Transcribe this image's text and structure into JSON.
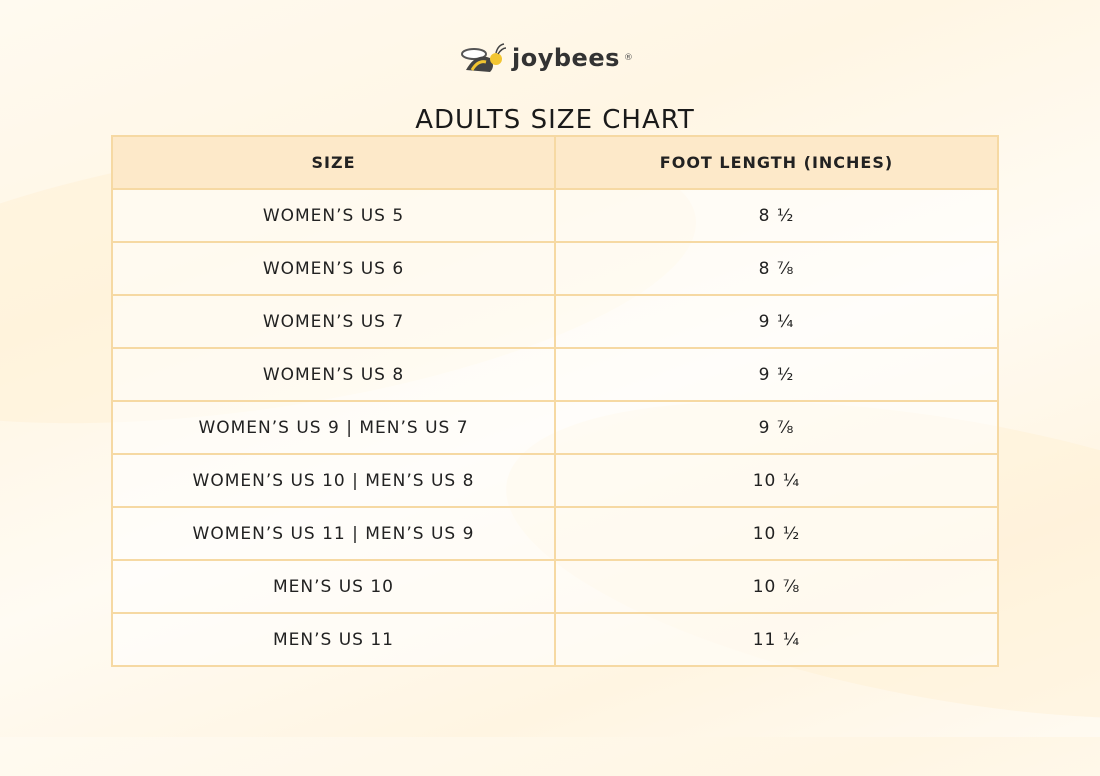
{
  "brand": {
    "name": "joybees",
    "logo_icon": "bee-icon",
    "registered": "®"
  },
  "title": "ADULTS SIZE CHART",
  "table": {
    "headers": [
      "SIZE",
      "FOOT LENGTH (INCHES)"
    ],
    "rows": [
      [
        "WOMEN’S US 5",
        "8 ½"
      ],
      [
        "WOMEN’S US 6",
        "8 ⅞"
      ],
      [
        "WOMEN’S US 7",
        "9 ¼"
      ],
      [
        "WOMEN’S US 8",
        "9 ½"
      ],
      [
        "WOMEN’S US 9 | MEN’S US 7",
        "9 ⅞"
      ],
      [
        "WOMEN’S US 10 | MEN’S US 8",
        "10 ¼"
      ],
      [
        "WOMEN’S US 11 | MEN’S US 9",
        "10 ½"
      ],
      [
        "MEN’S US 10",
        "10 ⅞"
      ],
      [
        "MEN’S US 11",
        "11 ¼"
      ]
    ]
  },
  "colors": {
    "header_bg": "#fde9c9",
    "border": "#f6d9a3",
    "bee_yellow": "#f2c531"
  }
}
